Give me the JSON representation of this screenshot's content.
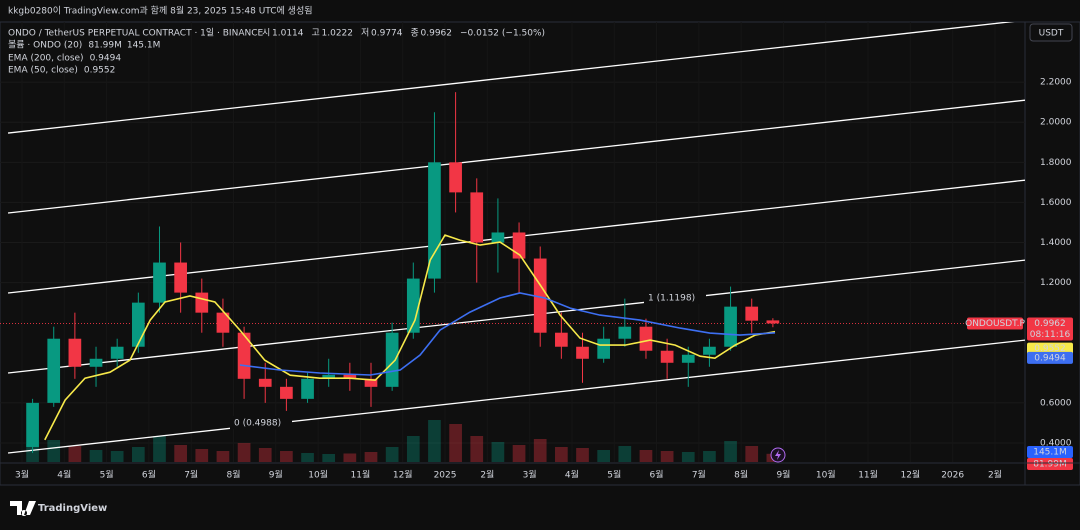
{
  "header": "kkgb0280이 TradingView.com과 함께 8월 23, 2025 15:48 UTC에 생성됨",
  "footer": "TradingView",
  "chart_data": {
    "type": "candlestick",
    "title": "ONDO / TetherUS PERPETUAL CONTRACT · 1일 · BINANCE",
    "legend": {
      "open_label": "시",
      "high_label": "고",
      "low_label": "저",
      "close_label": "종",
      "change": "−0.0152 (−1.50%)",
      "volume_title": "볼륨 · ONDO (20)",
      "volume_value": "81.99M",
      "volume_ma": "145.1M",
      "ema200_title": "EMA (200, close)",
      "ema50_title": "EMA (50, close)"
    },
    "currency_button": "USDT",
    "symbol_label": "ONDOUSDT.P",
    "countdown": "08:11:16",
    "xlim": [
      -0.52,
      23.71
    ],
    "xticks": [
      {
        "value": 0,
        "label": "3월"
      },
      {
        "value": 1,
        "label": "4월"
      },
      {
        "value": 2,
        "label": "5월"
      },
      {
        "value": 3,
        "label": "6월"
      },
      {
        "value": 4,
        "label": "7월"
      },
      {
        "value": 5,
        "label": "8월"
      },
      {
        "value": 6,
        "label": "9월"
      },
      {
        "value": 7,
        "label": "10월"
      },
      {
        "value": 8,
        "label": "11월"
      },
      {
        "value": 9,
        "label": "12월"
      },
      {
        "value": 10,
        "label": "2025"
      },
      {
        "value": 11,
        "label": "2월"
      },
      {
        "value": 12,
        "label": "3월"
      },
      {
        "value": 13,
        "label": "4월"
      },
      {
        "value": 14,
        "label": "5월"
      },
      {
        "value": 15,
        "label": "6월"
      },
      {
        "value": 16,
        "label": "7월"
      },
      {
        "value": 17,
        "label": "8월"
      },
      {
        "value": 18,
        "label": "9월"
      },
      {
        "value": 19,
        "label": "10월"
      },
      {
        "value": 20,
        "label": "11월"
      },
      {
        "value": 21,
        "label": "12월"
      },
      {
        "value": 22,
        "label": "2026"
      },
      {
        "value": 23,
        "label": "2월"
      }
    ],
    "ylim": [
      0.305,
      2.5
    ],
    "yticks": [
      {
        "value": 2.2,
        "label": "2.2000"
      },
      {
        "value": 2.0,
        "label": "2.0000"
      },
      {
        "value": 1.8,
        "label": "1.8000"
      },
      {
        "value": 1.6,
        "label": "1.6000"
      },
      {
        "value": 1.4,
        "label": "1.4000"
      },
      {
        "value": 1.2,
        "label": "1.2000"
      },
      {
        "value": 0.6,
        "label": "0.6000"
      },
      {
        "value": 0.4,
        "label": "0.4000"
      }
    ],
    "up_color": "#089981",
    "down_color": "#f23645",
    "candles": {
      "x": [
        0.25,
        0.75,
        1.25,
        1.75,
        2.25,
        2.75,
        3.25,
        3.75,
        4.25,
        4.75,
        5.25,
        5.75,
        6.25,
        6.75,
        7.25,
        7.75,
        8.25,
        8.75,
        9.25,
        9.75,
        10.25,
        10.75,
        11.25,
        11.75,
        12.25,
        12.75,
        13.25,
        13.75,
        14.25,
        14.75,
        15.25,
        15.75,
        16.25,
        16.75,
        17.25,
        17.75
      ],
      "open": [
        0.38,
        0.6,
        0.92,
        0.78,
        0.82,
        0.88,
        1.1,
        1.3,
        1.15,
        1.05,
        0.95,
        0.72,
        0.68,
        0.62,
        0.72,
        0.74,
        0.72,
        0.68,
        0.95,
        1.22,
        1.8,
        1.65,
        1.4,
        1.45,
        1.32,
        0.95,
        0.88,
        0.82,
        0.92,
        0.98,
        0.86,
        0.8,
        0.84,
        0.88,
        1.08,
        1.0114
      ],
      "high": [
        0.62,
        0.98,
        1.05,
        0.88,
        0.92,
        1.15,
        1.48,
        1.4,
        1.22,
        1.12,
        0.98,
        0.8,
        0.72,
        0.75,
        0.82,
        0.8,
        0.8,
        1.0,
        1.3,
        2.05,
        2.15,
        1.72,
        1.62,
        1.5,
        1.38,
        1.05,
        0.95,
        0.98,
        1.12,
        1.02,
        0.92,
        0.88,
        0.92,
        1.18,
        1.12,
        1.0222
      ],
      "low": [
        0.35,
        0.58,
        0.72,
        0.68,
        0.78,
        0.85,
        1.05,
        1.05,
        0.95,
        0.88,
        0.62,
        0.6,
        0.56,
        0.6,
        0.68,
        0.66,
        0.58,
        0.66,
        0.92,
        1.15,
        1.55,
        1.2,
        1.25,
        1.15,
        0.88,
        0.82,
        0.7,
        0.8,
        0.88,
        0.82,
        0.72,
        0.68,
        0.78,
        0.86,
        0.95,
        0.9774
      ],
      "close": [
        0.6,
        0.92,
        0.78,
        0.82,
        0.88,
        1.1,
        1.3,
        1.15,
        1.05,
        0.95,
        0.72,
        0.68,
        0.62,
        0.72,
        0.74,
        0.72,
        0.68,
        0.95,
        1.22,
        1.8,
        1.65,
        1.4,
        1.45,
        1.32,
        0.95,
        0.88,
        0.82,
        0.92,
        0.98,
        0.86,
        0.8,
        0.84,
        0.88,
        1.08,
        1.01,
        0.9962
      ],
      "volume": [
        180,
        220,
        160,
        120,
        110,
        150,
        260,
        170,
        130,
        110,
        190,
        140,
        110,
        90,
        80,
        85,
        100,
        150,
        260,
        420,
        380,
        260,
        200,
        170,
        230,
        150,
        140,
        120,
        160,
        120,
        110,
        100,
        110,
        210,
        160,
        81.99
      ]
    },
    "series": [
      {
        "name": "EMA (50, close)",
        "color": "#f7e94a",
        "x": [
          0.54,
          1.02,
          1.49,
          2.08,
          2.55,
          3.03,
          3.38,
          3.97,
          4.56,
          5.15,
          5.74,
          6.34,
          7.04,
          7.75,
          8.35,
          8.82,
          9.29,
          9.65,
          10.0,
          10.35,
          10.83,
          11.3,
          11.77,
          12.25,
          12.72,
          13.19,
          13.66,
          14.26,
          14.85,
          15.44,
          16.03,
          16.38,
          16.86,
          17.33,
          17.8
        ],
        "values": [
          0.415,
          0.614,
          0.723,
          0.753,
          0.813,
          1.013,
          1.103,
          1.133,
          1.103,
          0.963,
          0.813,
          0.738,
          0.723,
          0.723,
          0.713,
          0.813,
          1.013,
          1.312,
          1.437,
          1.412,
          1.387,
          1.402,
          1.337,
          1.188,
          1.038,
          0.923,
          0.888,
          0.888,
          0.913,
          0.888,
          0.833,
          0.823,
          0.888,
          0.938,
          0.9552
        ]
      },
      {
        "name": "EMA (200, close)",
        "color": "#3d6ff2",
        "x": [
          5.15,
          6.1,
          7.04,
          8.23,
          8.94,
          9.41,
          9.88,
          10.59,
          11.3,
          11.77,
          12.36,
          12.96,
          13.66,
          14.61,
          15.56,
          16.26,
          16.97,
          17.8
        ],
        "values": [
          0.789,
          0.764,
          0.749,
          0.739,
          0.764,
          0.839,
          0.963,
          1.053,
          1.123,
          1.148,
          1.123,
          1.073,
          1.038,
          1.013,
          0.973,
          0.948,
          0.938,
          0.9494
        ]
      }
    ],
    "channel": [
      {
        "x": [
          -0.33,
          23.71
        ],
        "y": [
          0.35,
          0.913
        ]
      },
      {
        "x": [
          -0.33,
          23.71
        ],
        "y": [
          0.749,
          1.312
        ]
      },
      {
        "x": [
          -0.33,
          23.71
        ],
        "y": [
          1.148,
          1.711
        ]
      },
      {
        "x": [
          -0.33,
          23.71
        ],
        "y": [
          1.547,
          2.11
        ]
      },
      {
        "x": [
          -0.33,
          23.71
        ],
        "y": [
          1.946,
          2.509
        ]
      }
    ],
    "annotations": [
      "0 (0.4988)",
      "1 (1.1198)"
    ]
  }
}
